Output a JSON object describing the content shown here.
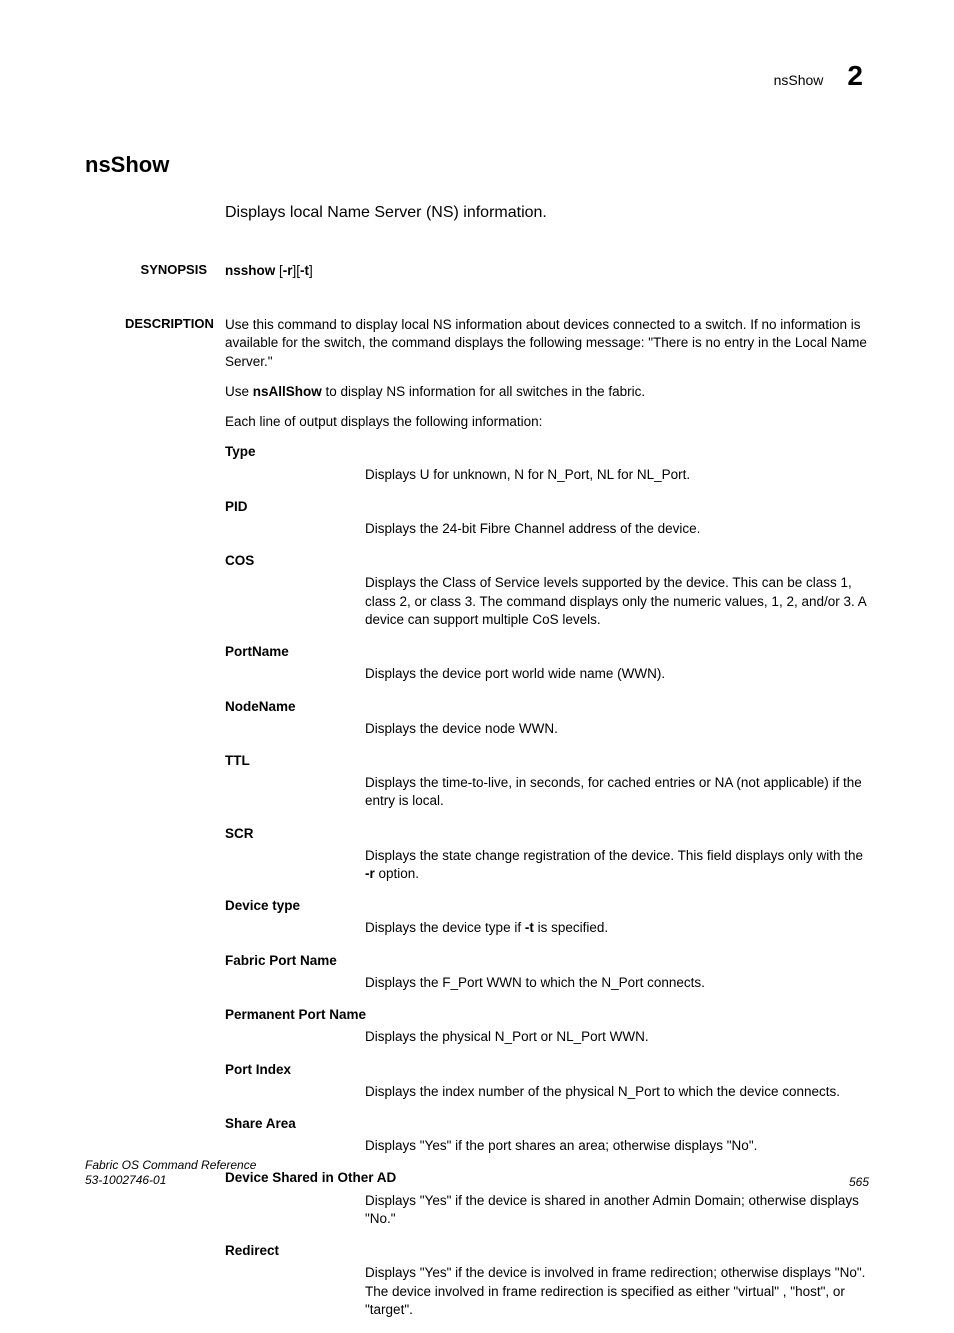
{
  "header": {
    "section_name": "nsShow",
    "chapter_number": "2"
  },
  "title": "nsShow",
  "summary": "Displays local Name Server (NS) information.",
  "synopsis": {
    "label": "SYNOPSIS",
    "command": "nsshow",
    "opt_open1": " [",
    "opt_r": "-r",
    "opt_close1": "][",
    "opt_t": "-t",
    "opt_close2": "]"
  },
  "description": {
    "label": "DESCRIPTION",
    "p1": "Use this command to display local NS information about devices connected to a switch. If no information is available for the switch, the command displays the following message: \"There is no entry in the Local Name Server.\"",
    "p2_pre": "Use ",
    "p2_cmd": "nsAllShow",
    "p2_post": " to display NS information for all switches in the fabric.",
    "p3": "Each line of output displays the following information:"
  },
  "defs": {
    "type": {
      "term": "Type",
      "desc": "Displays U for unknown, N for N_Port, NL for NL_Port."
    },
    "pid": {
      "term": "PID",
      "desc": "Displays the 24-bit Fibre Channel address of the device."
    },
    "cos": {
      "term": "COS",
      "desc": "Displays the Class of Service levels supported by the device. This can be class 1, class 2, or class 3. The command displays only the numeric values, 1, 2, and/or 3. A device can support multiple CoS levels."
    },
    "portname": {
      "term": "PortName",
      "desc": "Displays the device port world wide name (WWN)."
    },
    "nodename": {
      "term": "NodeName",
      "desc": "Displays the device node WWN."
    },
    "ttl": {
      "term": "TTL",
      "desc": "Displays the time-to-live, in seconds, for cached entries or NA (not applicable) if the entry is local."
    },
    "scr": {
      "term": "SCR",
      "pre": "Displays the state change registration of the device. This field displays only with the ",
      "opt": "-r",
      "post": " option."
    },
    "devtype": {
      "term": "Device type",
      "pre": "Displays the device type if ",
      "opt": "-t",
      "post": " is specified."
    },
    "fpn": {
      "term": "Fabric Port Name",
      "desc": "Displays the F_Port WWN to which the N_Port connects."
    },
    "ppn": {
      "term": "Permanent Port Name",
      "desc": "Displays the physical N_Port or NL_Port WWN."
    },
    "pidx": {
      "term": "Port Index",
      "desc": "Displays the index number of the physical N_Port to which the device connects."
    },
    "share": {
      "term": "Share Area",
      "desc": "Displays \"Yes\" if the port shares an area; otherwise displays \"No\"."
    },
    "dsad": {
      "term": "Device Shared in Other AD",
      "desc": "Displays \"Yes\" if the device is shared in another Admin Domain; otherwise displays \"No.\""
    },
    "redirect": {
      "term": "Redirect",
      "desc": "Displays \"Yes\" if the device is involved in frame redirection; otherwise displays \"No\". The device involved in frame redirection is specified as either \"virtual\" , \"host\", or \"target\"."
    }
  },
  "footer": {
    "doc_title": "Fabric OS Command Reference",
    "doc_id": "53-1002746-01",
    "page_num": "565"
  }
}
